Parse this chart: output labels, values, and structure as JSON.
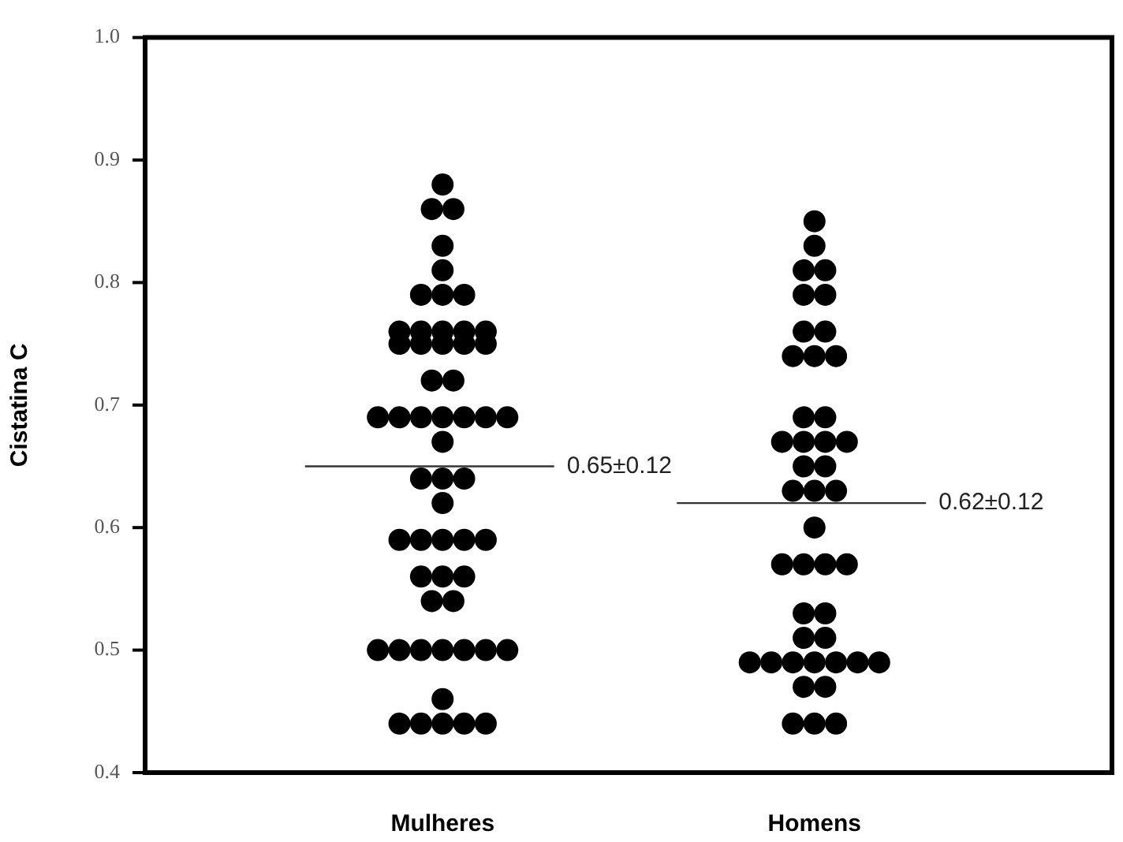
{
  "chart_data": {
    "type": "scatter",
    "ylabel": "Cistatina C",
    "categories": [
      "Mulheres",
      "Homens"
    ],
    "ylim": [
      0.4,
      1.0
    ],
    "yticks": [
      0.4,
      0.5,
      0.6,
      0.7,
      0.8,
      0.9,
      {
        "value": 1,
        "label": "1.0"
      }
    ],
    "grid": false,
    "legend": false,
    "marker": "circle",
    "series": [
      {
        "color": "#000000",
        "x": [
          "Mulheres",
          "Mulheres",
          "Mulheres",
          "Mulheres",
          "Mulheres",
          "Mulheres",
          "Mulheres",
          "Mulheres",
          "Mulheres",
          "Mulheres",
          "Mulheres",
          "Mulheres",
          "Mulheres",
          "Mulheres",
          "Mulheres",
          "Mulheres",
          "Mulheres",
          "Mulheres",
          "Mulheres",
          "Mulheres",
          "Mulheres",
          "Mulheres",
          "Mulheres",
          "Mulheres",
          "Mulheres",
          "Mulheres",
          "Mulheres",
          "Mulheres",
          "Mulheres",
          "Mulheres",
          "Mulheres",
          "Mulheres",
          "Mulheres",
          "Mulheres",
          "Mulheres",
          "Mulheres",
          "Mulheres",
          "Mulheres",
          "Mulheres",
          "Mulheres",
          "Mulheres",
          "Mulheres",
          "Mulheres",
          "Mulheres",
          "Mulheres",
          "Mulheres",
          "Mulheres",
          "Mulheres",
          "Mulheres",
          "Mulheres",
          "Mulheres",
          "Mulheres",
          "Mulheres",
          "Mulheres",
          "Mulheres"
        ],
        "values": [
          0.88,
          0.86,
          0.86,
          0.83,
          0.81,
          0.79,
          0.79,
          0.79,
          0.76,
          0.76,
          0.76,
          0.76,
          0.76,
          0.75,
          0.75,
          0.75,
          0.75,
          0.75,
          0.72,
          0.72,
          0.69,
          0.69,
          0.69,
          0.69,
          0.69,
          0.69,
          0.69,
          0.67,
          0.64,
          0.64,
          0.64,
          0.62,
          0.59,
          0.59,
          0.59,
          0.59,
          0.59,
          0.56,
          0.56,
          0.56,
          0.54,
          0.54,
          0.5,
          0.5,
          0.5,
          0.5,
          0.5,
          0.5,
          0.5,
          0.46,
          0.44,
          0.44,
          0.44,
          0.44,
          0.44
        ]
      },
      {
        "color": "#000000",
        "x": [
          "Homens",
          "Homens",
          "Homens",
          "Homens",
          "Homens",
          "Homens",
          "Homens",
          "Homens",
          "Homens",
          "Homens",
          "Homens",
          "Homens",
          "Homens",
          "Homens",
          "Homens",
          "Homens",
          "Homens",
          "Homens",
          "Homens",
          "Homens",
          "Homens",
          "Homens",
          "Homens",
          "Homens",
          "Homens",
          "Homens",
          "Homens",
          "Homens",
          "Homens",
          "Homens",
          "Homens",
          "Homens",
          "Homens",
          "Homens",
          "Homens",
          "Homens",
          "Homens",
          "Homens",
          "Homens",
          "Homens",
          "Homens",
          "Homens",
          "Homens"
        ],
        "values": [
          0.85,
          0.83,
          0.81,
          0.81,
          0.79,
          0.79,
          0.76,
          0.76,
          0.74,
          0.74,
          0.74,
          0.69,
          0.69,
          0.67,
          0.67,
          0.67,
          0.67,
          0.65,
          0.65,
          0.63,
          0.63,
          0.63,
          0.6,
          0.57,
          0.57,
          0.57,
          0.57,
          0.53,
          0.53,
          0.51,
          0.51,
          0.49,
          0.49,
          0.49,
          0.49,
          0.49,
          0.49,
          0.49,
          0.47,
          0.47,
          0.44,
          0.44,
          0.44
        ]
      }
    ],
    "ref_lines": [
      {
        "axis": "y",
        "value": 0.65,
        "label": "0.65±0.12",
        "color": "#333333"
      },
      {
        "axis": "y",
        "value": 0.62,
        "label": "0.62±0.12",
        "color": "#333333"
      }
    ]
  }
}
